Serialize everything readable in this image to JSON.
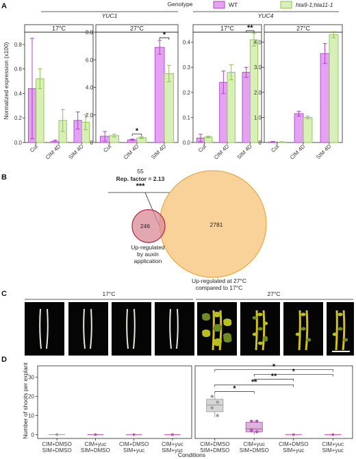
{
  "panel_labels": [
    "A",
    "B",
    "C",
    "D"
  ],
  "panel_a": {
    "legend_title": "Genotype",
    "legend": [
      {
        "label": "WT",
        "color": "#e3a3f0",
        "edge": "#b23fd1"
      },
      {
        "label": "hta9-1;hta11-1",
        "color": "#d8efb8",
        "edge": "#8bc34a"
      }
    ],
    "ylabel": "Normalized expression (x100)",
    "genes": [
      "YUC1",
      "YUC4"
    ],
    "temps": [
      "17°C",
      "27°C",
      "17°C",
      "27°C"
    ],
    "categories": [
      "Cut",
      "CIM 4D",
      "SIM 4D"
    ],
    "yticks": [
      [
        "0.0",
        "0.2",
        "0.4",
        "0.6",
        "0.8"
      ],
      [
        "0",
        "2.0",
        "4.0",
        "6.0",
        "8.0"
      ],
      [
        "0.0",
        "0.1",
        "0.2",
        "0.3",
        "0.4"
      ],
      [
        "0",
        "1.0",
        "2.0",
        "3.0",
        "4.0"
      ]
    ],
    "sig": [
      "*",
      "*",
      "**"
    ]
  },
  "chart_data": [
    {
      "type": "bar",
      "title": "YUC1 17°C",
      "categories": [
        "Cut",
        "CIM 4D",
        "SIM 4D"
      ],
      "ylim": [
        0,
        0.9
      ],
      "series": [
        {
          "name": "WT",
          "values": [
            0.44,
            0.01,
            0.18
          ],
          "err": [
            0.41,
            0.01,
            0.07
          ]
        },
        {
          "name": "hta9-1;hta11-1",
          "values": [
            0.52,
            0.18,
            0.165
          ],
          "err": [
            0.08,
            0.09,
            0.06
          ]
        }
      ]
    },
    {
      "type": "bar",
      "title": "YUC1 27°C",
      "categories": [
        "Cut",
        "CIM 4D",
        "SIM 4D"
      ],
      "ylim": [
        0,
        8.0
      ],
      "series": [
        {
          "name": "WT",
          "values": [
            0.45,
            0.2,
            6.9
          ],
          "err": [
            0.35,
            0.05,
            0.5
          ]
        },
        {
          "name": "hta9-1;hta11-1",
          "values": [
            0.5,
            0.35,
            5.0
          ],
          "err": [
            0.1,
            0.06,
            0.6
          ]
        }
      ]
    },
    {
      "type": "bar",
      "title": "YUC4 17°C",
      "categories": [
        "Cut",
        "CIM 4D",
        "SIM 4D"
      ],
      "ylim": [
        0,
        0.44
      ],
      "series": [
        {
          "name": "WT",
          "values": [
            0.018,
            0.24,
            0.28
          ],
          "err": [
            0.015,
            0.045,
            0.02
          ]
        },
        {
          "name": "hta9-1;hta11-1",
          "values": [
            0.022,
            0.28,
            0.41
          ],
          "err": [
            0.003,
            0.03,
            0.025
          ]
        }
      ]
    },
    {
      "type": "bar",
      "title": "YUC4 27°C",
      "categories": [
        "Cut",
        "CIM 4D",
        "SIM 4D"
      ],
      "ylim": [
        0,
        4.4
      ],
      "series": [
        {
          "name": "WT",
          "values": [
            0.02,
            1.15,
            3.55
          ],
          "err": [
            0.02,
            0.1,
            0.4
          ]
        },
        {
          "name": "hta9-1;hta11-1",
          "values": [
            0.02,
            1.0,
            4.3
          ],
          "err": [
            0.01,
            0.05,
            0.12
          ]
        }
      ]
    },
    {
      "type": "box",
      "ylabel": "Number of shoots per explant",
      "xlabel": "Conditions",
      "strips": [
        "17°C",
        "27°C"
      ],
      "categories": [
        "CIM+DMSO\nSIM+DMSO",
        "CIM+yuc\nSIM+DMSO",
        "CIM+DMSO\nSIM+yuc",
        "CIM+yuc\nSIM+yuc"
      ],
      "yticks": [
        "0",
        "10",
        "20",
        "30"
      ],
      "ylim": [
        -2,
        36
      ],
      "groups_17C": [
        {
          "median": 0
        },
        {
          "median": 0
        },
        {
          "median": 0
        },
        {
          "median": 0
        }
      ],
      "groups_27C": [
        {
          "q1": 12,
          "median": 15.5,
          "q3": 18.5,
          "min": 9,
          "max": 21,
          "points": [
            20,
            17,
            14,
            10
          ]
        },
        {
          "q1": 1.5,
          "median": 3,
          "q3": 6.5,
          "min": 0,
          "max": 7.5,
          "points": [
            7,
            7,
            2.5,
            1.5,
            2
          ]
        },
        {
          "median": 0
        },
        {
          "median": 0
        }
      ],
      "sig": [
        "*",
        "**",
        "**",
        "*",
        "*"
      ]
    }
  ],
  "panel_b": {
    "overlap": "55",
    "rep_factor": "Rep. factor = 2.13",
    "stars": "***",
    "left_count": "246",
    "right_count": "2781",
    "left_label": [
      "Up-regulated",
      "by auxin",
      "application"
    ],
    "right_label": [
      "Up-regulated at 27°C",
      "compared to 17°C"
    ]
  },
  "panel_c": {
    "temps": [
      "17°C",
      "27°C"
    ]
  }
}
